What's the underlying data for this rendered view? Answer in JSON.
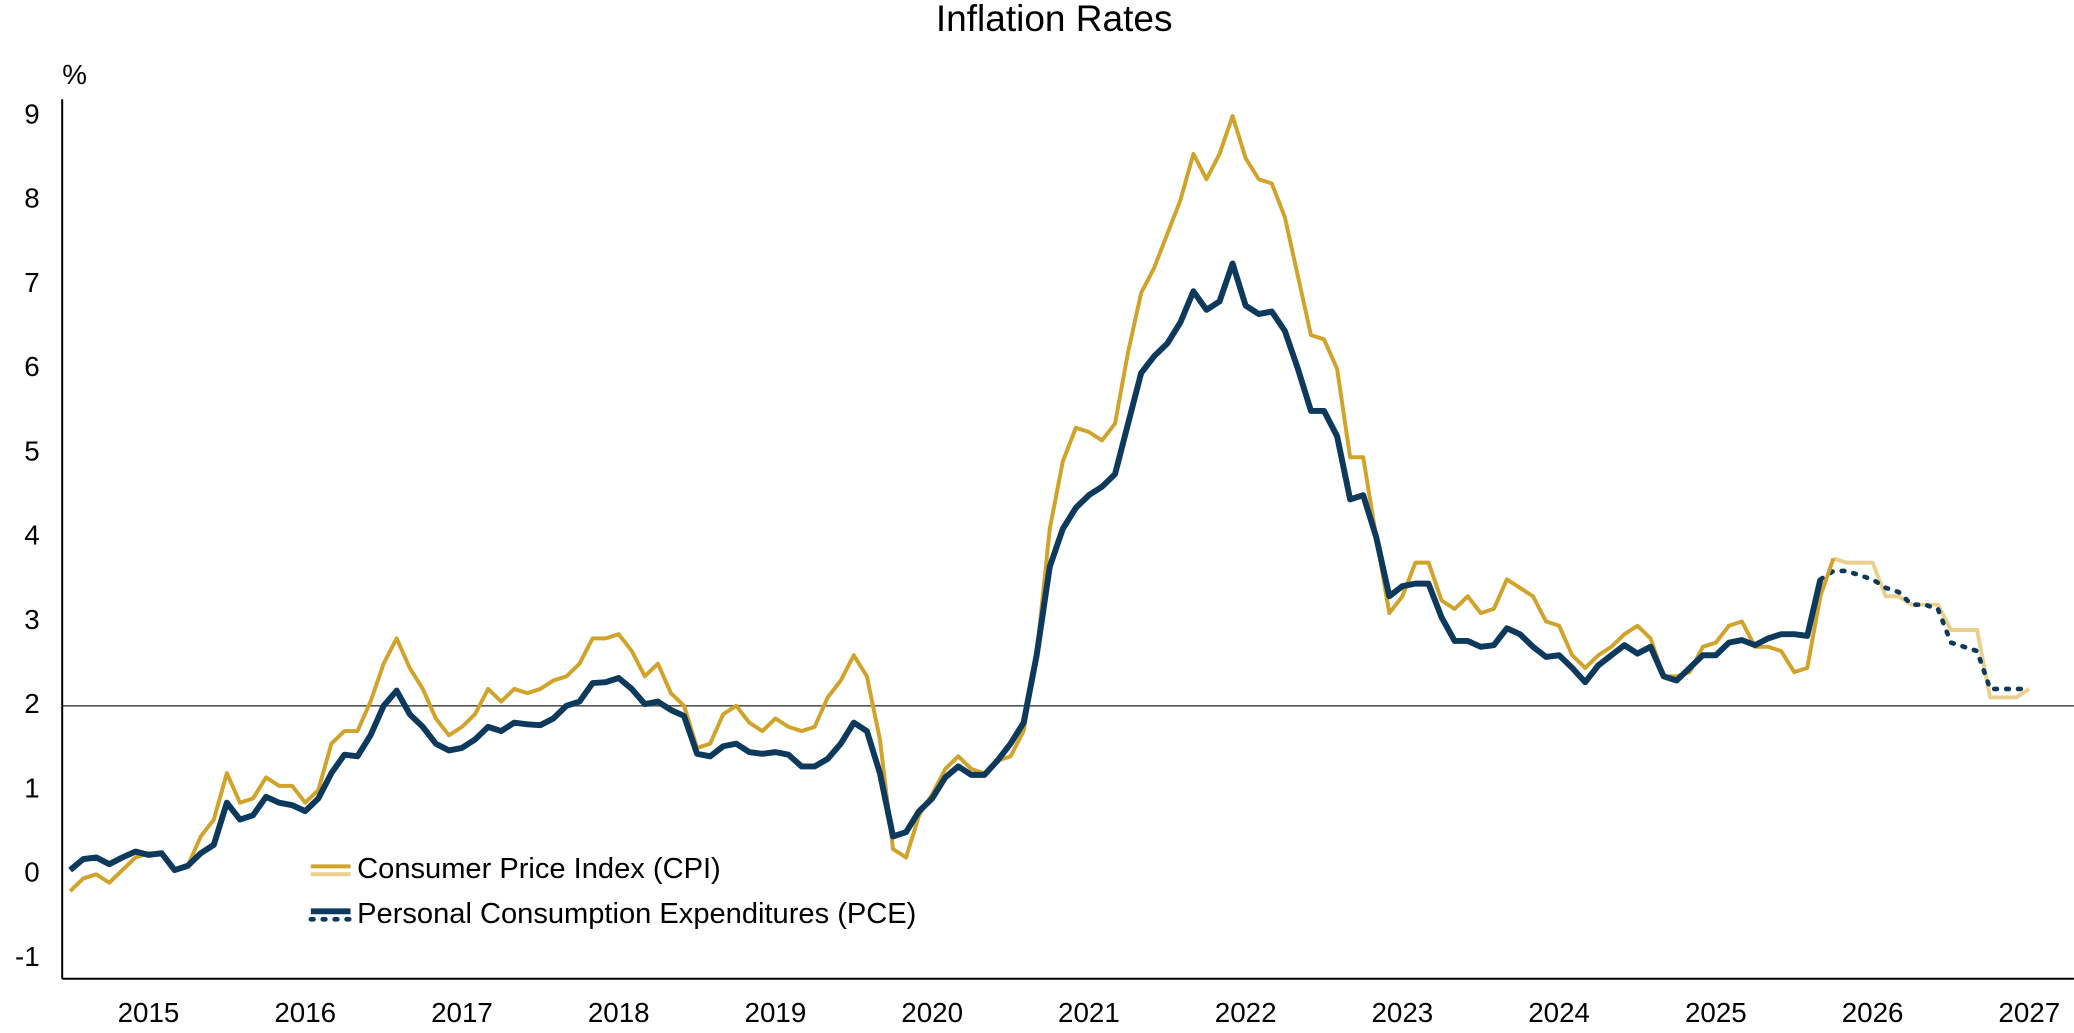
{
  "chart_data": {
    "type": "line",
    "title": "Inflation Rates",
    "y_label": "%",
    "ylim": [
      -1.24,
      9.2
    ],
    "yticks": [
      -1,
      0,
      1,
      2,
      3,
      4,
      5,
      6,
      7,
      8,
      9
    ],
    "reference_line": 2,
    "legend": "lower left",
    "categories": [
      null,
      null,
      null,
      null,
      null,
      null,
      "2015",
      null,
      null,
      null,
      null,
      null,
      null,
      null,
      null,
      null,
      null,
      null,
      "2016",
      null,
      null,
      null,
      null,
      null,
      null,
      null,
      null,
      null,
      null,
      null,
      "2017",
      null,
      null,
      null,
      null,
      null,
      null,
      null,
      null,
      null,
      null,
      null,
      "2018",
      null,
      null,
      null,
      null,
      null,
      null,
      null,
      null,
      null,
      null,
      null,
      "2019",
      null,
      null,
      null,
      null,
      null,
      null,
      null,
      null,
      null,
      null,
      null,
      "2020",
      null,
      null,
      null,
      null,
      null,
      null,
      null,
      null,
      null,
      null,
      null,
      "2021",
      null,
      null,
      null,
      null,
      null,
      null,
      null,
      null,
      null,
      null,
      null,
      "2022",
      null,
      null,
      null,
      null,
      null,
      null,
      null,
      null,
      null,
      null,
      null,
      "2023",
      null,
      null,
      null,
      null,
      null,
      null,
      null,
      null,
      null,
      null,
      null,
      "2024",
      null,
      null,
      null,
      null,
      null,
      null,
      null,
      null,
      null,
      null,
      null,
      "2025",
      null,
      null,
      null,
      null,
      null,
      null,
      null,
      null,
      null,
      null,
      null,
      "2026",
      null,
      null,
      null,
      null,
      null,
      null,
      null,
      null,
      null,
      null,
      null,
      "2027"
    ],
    "series": [
      {
        "name": "Consumer Price Index (CPI)",
        "color": "#d1a32a",
        "projection_color": "#e9d08c",
        "projection_style": "solid",
        "values": [
          -0.2,
          -0.05,
          0.0,
          -0.1,
          0.05,
          0.2,
          0.25,
          0.25,
          0.05,
          0.1,
          0.45,
          0.65,
          1.2,
          0.85,
          0.9,
          1.15,
          1.05,
          1.05,
          0.85,
          1.0,
          1.55,
          1.7,
          1.7,
          2.05,
          2.5,
          2.8,
          2.45,
          2.2,
          1.85,
          1.65,
          1.75,
          1.9,
          2.2,
          2.05,
          2.2,
          2.15,
          2.2,
          2.3,
          2.35,
          2.5,
          2.8,
          2.8,
          2.85,
          2.65,
          2.35,
          2.5,
          2.15,
          2.0,
          1.5,
          1.55,
          1.9,
          2.0,
          1.8,
          1.7,
          1.85,
          1.75,
          1.7,
          1.75,
          2.1,
          2.3,
          2.6,
          2.35,
          1.6,
          0.3,
          0.2,
          0.7,
          0.95,
          1.25,
          1.4,
          1.25,
          1.2,
          1.35,
          1.4,
          1.7,
          2.6,
          4.1,
          4.9,
          5.3,
          5.25,
          5.15,
          5.35,
          6.2,
          6.9,
          7.2,
          7.6,
          8.0,
          8.55,
          8.25,
          8.55,
          9.0,
          8.5,
          8.25,
          8.2,
          7.8,
          7.1,
          6.4,
          6.35,
          6.0,
          4.95,
          4.95,
          4.0,
          3.1,
          3.3,
          3.7,
          3.7,
          3.25,
          3.15,
          3.3,
          3.1,
          3.15,
          3.5,
          3.4,
          3.3,
          3.0,
          2.95,
          2.6,
          2.45,
          2.6,
          2.7,
          2.85,
          2.95,
          2.8,
          2.35,
          2.35,
          2.4,
          2.7,
          2.75,
          2.95,
          3.0,
          2.7,
          2.7,
          2.65,
          2.4,
          2.45,
          3.3,
          3.75,
          null,
          null,
          null,
          null,
          null,
          null,
          null,
          null,
          null,
          null,
          null,
          null,
          null,
          null,
          null
        ],
        "projection": [
          null,
          null,
          null,
          null,
          null,
          null,
          null,
          null,
          null,
          null,
          null,
          null,
          null,
          null,
          null,
          null,
          null,
          null,
          null,
          null,
          null,
          null,
          null,
          null,
          null,
          null,
          null,
          null,
          null,
          null,
          null,
          null,
          null,
          null,
          null,
          null,
          null,
          null,
          null,
          null,
          null,
          null,
          null,
          null,
          null,
          null,
          null,
          null,
          null,
          null,
          null,
          null,
          null,
          null,
          null,
          null,
          null,
          null,
          null,
          null,
          null,
          null,
          null,
          null,
          null,
          null,
          null,
          null,
          null,
          null,
          null,
          null,
          null,
          null,
          null,
          null,
          null,
          null,
          null,
          null,
          null,
          null,
          null,
          null,
          null,
          null,
          null,
          null,
          null,
          null,
          null,
          null,
          null,
          null,
          null,
          null,
          null,
          null,
          null,
          null,
          null,
          null,
          null,
          null,
          null,
          null,
          null,
          null,
          null,
          null,
          null,
          null,
          null,
          null,
          null,
          null,
          null,
          null,
          null,
          null,
          null,
          null,
          null,
          null,
          null,
          null,
          null,
          null,
          null,
          null,
          null,
          null,
          null,
          null,
          null,
          3.75,
          3.7,
          3.7,
          3.7,
          3.3,
          3.3,
          3.2,
          3.2,
          3.2,
          2.9,
          2.9,
          2.9,
          2.1,
          2.1,
          2.1,
          2.2
        ]
      },
      {
        "name": "Personal Consumption Expenditures (PCE)",
        "color": "#0d3a5c",
        "projection_color": "#0d3a5c",
        "projection_style": "dotted",
        "values": [
          0.05,
          0.18,
          0.2,
          0.12,
          0.2,
          0.27,
          0.23,
          0.25,
          0.05,
          0.1,
          0.25,
          0.35,
          0.85,
          0.65,
          0.7,
          0.92,
          0.85,
          0.82,
          0.75,
          0.9,
          1.2,
          1.42,
          1.4,
          1.65,
          2.0,
          2.18,
          1.9,
          1.75,
          1.55,
          1.47,
          1.5,
          1.6,
          1.75,
          1.7,
          1.8,
          1.78,
          1.77,
          1.85,
          2.0,
          2.05,
          2.27,
          2.28,
          2.33,
          2.2,
          2.02,
          2.05,
          1.95,
          1.88,
          1.43,
          1.4,
          1.52,
          1.55,
          1.45,
          1.43,
          1.45,
          1.42,
          1.28,
          1.28,
          1.37,
          1.55,
          1.8,
          1.7,
          1.2,
          0.45,
          0.5,
          0.75,
          0.9,
          1.15,
          1.28,
          1.18,
          1.18,
          1.35,
          1.55,
          1.8,
          2.6,
          3.65,
          4.1,
          4.35,
          4.5,
          4.6,
          4.75,
          5.35,
          5.95,
          6.15,
          6.3,
          6.55,
          6.92,
          6.7,
          6.8,
          7.25,
          6.75,
          6.65,
          6.68,
          6.45,
          6.0,
          5.5,
          5.5,
          5.2,
          4.45,
          4.5,
          4.0,
          3.3,
          3.42,
          3.45,
          3.45,
          3.05,
          2.77,
          2.77,
          2.7,
          2.72,
          2.92,
          2.85,
          2.7,
          2.58,
          2.6,
          2.45,
          2.28,
          2.48,
          2.6,
          2.72,
          2.62,
          2.7,
          2.35,
          2.3,
          2.45,
          2.6,
          2.6,
          2.75,
          2.78,
          2.72,
          2.8,
          2.85,
          2.85,
          2.83,
          3.5,
          null,
          null,
          null,
          null,
          null,
          null,
          null,
          null,
          null,
          null,
          null,
          null,
          null,
          null,
          null,
          null
        ],
        "projection": [
          null,
          null,
          null,
          null,
          null,
          null,
          null,
          null,
          null,
          null,
          null,
          null,
          null,
          null,
          null,
          null,
          null,
          null,
          null,
          null,
          null,
          null,
          null,
          null,
          null,
          null,
          null,
          null,
          null,
          null,
          null,
          null,
          null,
          null,
          null,
          null,
          null,
          null,
          null,
          null,
          null,
          null,
          null,
          null,
          null,
          null,
          null,
          null,
          null,
          null,
          null,
          null,
          null,
          null,
          null,
          null,
          null,
          null,
          null,
          null,
          null,
          null,
          null,
          null,
          null,
          null,
          null,
          null,
          null,
          null,
          null,
          null,
          null,
          null,
          null,
          null,
          null,
          null,
          null,
          null,
          null,
          null,
          null,
          null,
          null,
          null,
          null,
          null,
          null,
          null,
          null,
          null,
          null,
          null,
          null,
          null,
          null,
          null,
          null,
          null,
          null,
          null,
          null,
          null,
          null,
          null,
          null,
          null,
          null,
          null,
          null,
          null,
          null,
          null,
          null,
          null,
          null,
          null,
          null,
          null,
          null,
          null,
          null,
          null,
          null,
          null,
          null,
          null,
          null,
          null,
          null,
          null,
          null,
          null,
          3.5,
          3.6,
          3.6,
          3.55,
          3.5,
          3.4,
          3.35,
          3.2,
          3.2,
          3.15,
          2.75,
          2.7,
          2.65,
          2.2,
          2.2,
          2.2,
          2.2
        ]
      }
    ]
  }
}
